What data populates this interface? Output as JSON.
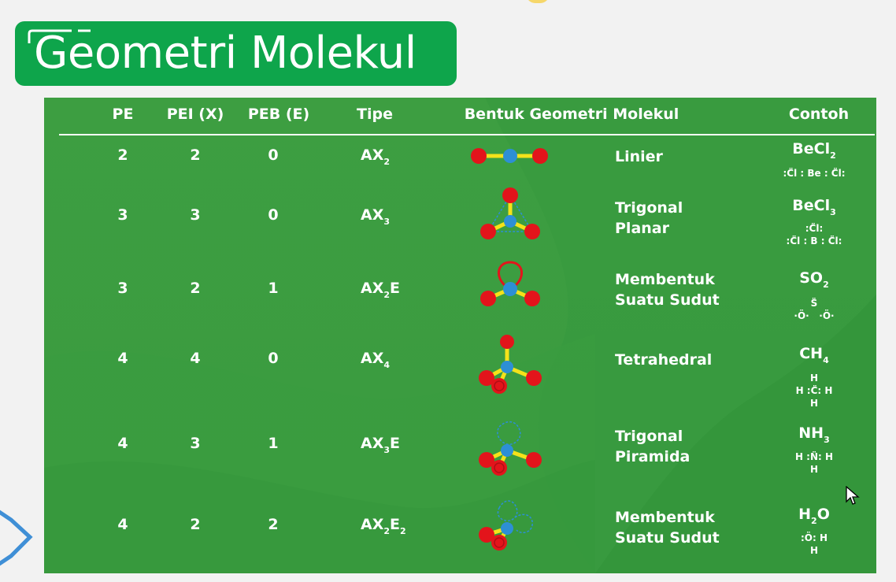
{
  "title": "Geometri Molekul",
  "headers": {
    "pe": "PE",
    "pei": "PEI (X)",
    "peb": "PEB (E)",
    "tipe": "Tipe",
    "bentuk": "Bentuk Geometri Molekul",
    "contoh": "Contoh"
  },
  "rows": [
    {
      "pe": "2",
      "pei": "2",
      "peb": "0",
      "tipe_base": "AX",
      "tipe_sub": "2",
      "tipe_rest": "",
      "tipe_sub2": "",
      "name1": "Linier",
      "name2": "",
      "f_base": "BeCl",
      "f_sub": "2",
      "f_rest": "",
      "f_sub2": "",
      "lewis": ":C̈l : Be : C̈l:"
    },
    {
      "pe": "3",
      "pei": "3",
      "peb": "0",
      "tipe_base": "AX",
      "tipe_sub": "3",
      "tipe_rest": "",
      "tipe_sub2": "",
      "name1": "Trigonal",
      "name2": "Planar",
      "f_base": "BeCl",
      "f_sub": "3",
      "f_rest": "",
      "f_sub2": "",
      "lewis": ":C̈l:\n:C̈l : B : C̈l:"
    },
    {
      "pe": "3",
      "pei": "2",
      "peb": "1",
      "tipe_base": "AX",
      "tipe_sub": "2",
      "tipe_rest": "E",
      "tipe_sub2": "",
      "name1": "Membentuk",
      "name2": "Suatu Sudut",
      "f_base": "SO",
      "f_sub": "2",
      "f_rest": "",
      "f_sub2": "",
      "lewis": "S̈\n·Ö·   ·Ö·"
    },
    {
      "pe": "4",
      "pei": "4",
      "peb": "0",
      "tipe_base": "AX",
      "tipe_sub": "4",
      "tipe_rest": "",
      "tipe_sub2": "",
      "name1": "Tetrahedral",
      "name2": "",
      "f_base": "CH",
      "f_sub": "4",
      "f_rest": "",
      "f_sub2": "",
      "lewis": "H\nH :C̈: H\nH"
    },
    {
      "pe": "4",
      "pei": "3",
      "peb": "1",
      "tipe_base": "AX",
      "tipe_sub": "3",
      "tipe_rest": "E",
      "tipe_sub2": "",
      "name1": "Trigonal",
      "name2": "Piramida",
      "f_base": "NH",
      "f_sub": "3",
      "f_rest": "",
      "f_sub2": "",
      "lewis": "H :N̈: H\nH"
    },
    {
      "pe": "4",
      "pei": "2",
      "peb": "2",
      "tipe_base": "AX",
      "tipe_sub": "2",
      "tipe_rest": "E",
      "tipe_sub2": "2",
      "name1": "Membentuk",
      "name2": "Suatu Sudut",
      "f_base": "H",
      "f_sub": "2",
      "f_rest": "O",
      "f_sub2": "",
      "lewis": ":Ö: H\nH"
    }
  ],
  "colors": {
    "banner": "#0ea54b",
    "panel": "#3d9e41",
    "atom_outer": "#e3141b",
    "atom_center": "#2d8fd5",
    "bond": "#f4e21a"
  },
  "icons": [
    "title-deco-icon",
    "hexagon-icon",
    "mouse-cursor-icon"
  ]
}
